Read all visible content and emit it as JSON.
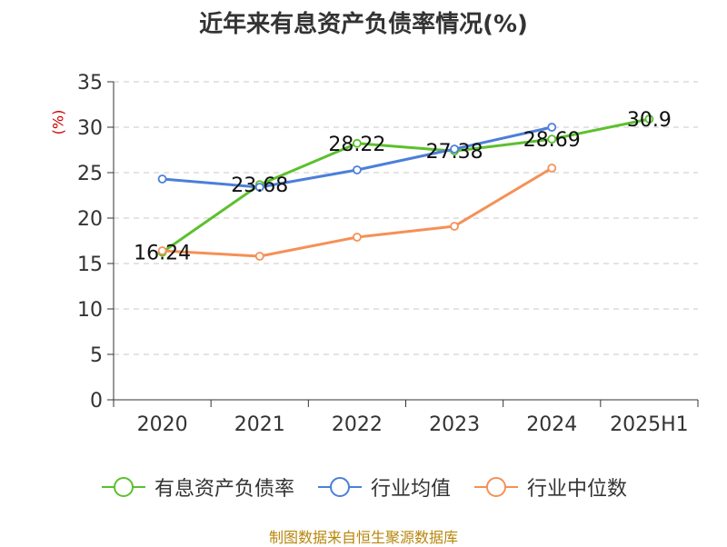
{
  "title": "近年来有息资产负债率情况(%)",
  "source": "制图数据来自恒生聚源数据库",
  "chart_data": {
    "type": "line",
    "title": "近年来有息资产负债率情况(%)",
    "ylabel": "(%)",
    "xlabel": "",
    "categories": [
      "2020",
      "2021",
      "2022",
      "2023",
      "2024",
      "2025H1"
    ],
    "ylim": [
      0,
      35
    ],
    "yticks": [
      0,
      5,
      10,
      15,
      20,
      25,
      30,
      35
    ],
    "grid": true,
    "legend_position": "bottom",
    "series": [
      {
        "name": "有息资产负债率",
        "color": "#5cc02e",
        "values": [
          16.24,
          23.68,
          28.22,
          27.38,
          28.69,
          30.9
        ],
        "labels": [
          "16.24",
          "23.68",
          "28.22",
          "27.38",
          "28.69",
          "30.9"
        ]
      },
      {
        "name": "行业均值",
        "color": "#4c7fd9",
        "values": [
          24.3,
          23.4,
          25.3,
          27.6,
          30.0,
          null
        ]
      },
      {
        "name": "行业中位数",
        "color": "#f59057",
        "values": [
          16.4,
          15.8,
          17.9,
          19.1,
          25.5,
          null
        ]
      }
    ]
  }
}
